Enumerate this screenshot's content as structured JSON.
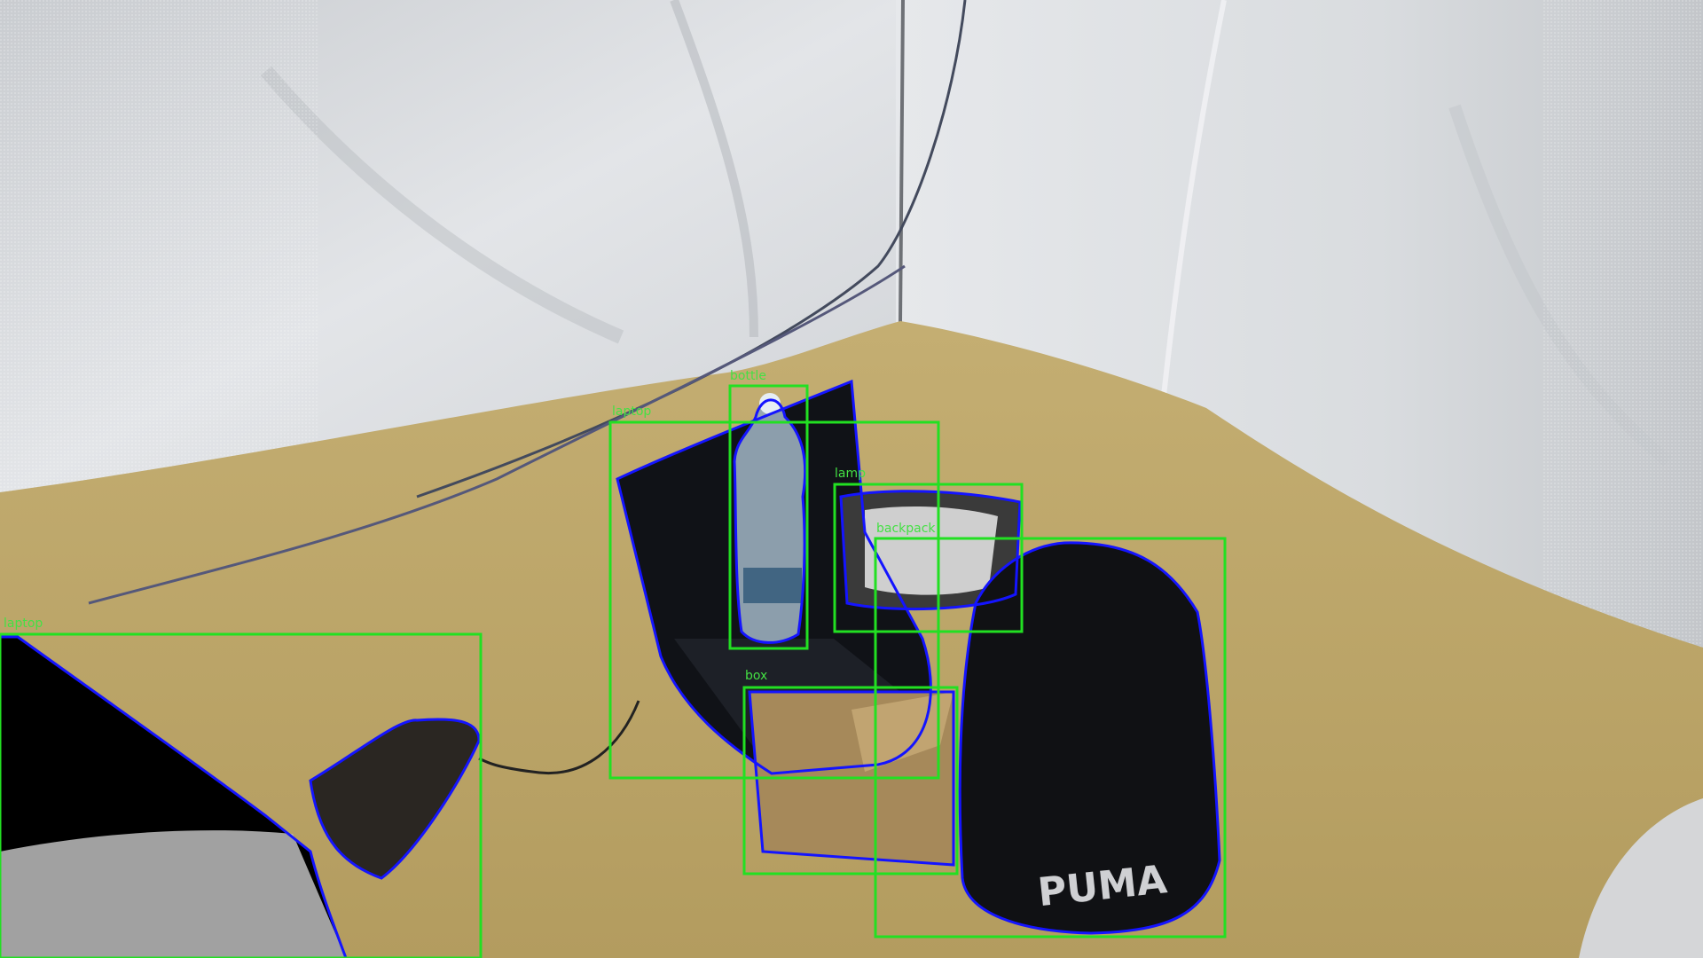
{
  "image": {
    "description_free": true
  },
  "colors": {
    "bbox": "#22e022",
    "label": "#44e044",
    "mask_outline": "#1414ff",
    "wall": "#d7dadd",
    "floor": "#b9a46a"
  },
  "detections": [
    {
      "id": "bottle",
      "label": "bottle"
    },
    {
      "id": "laptop-center",
      "label": "laptop"
    },
    {
      "id": "lamp",
      "label": "lamp"
    },
    {
      "id": "backpack",
      "label": "backpack"
    },
    {
      "id": "box",
      "label": "box"
    },
    {
      "id": "laptop-left",
      "label": "laptop"
    }
  ],
  "brand_text": "PUMA"
}
